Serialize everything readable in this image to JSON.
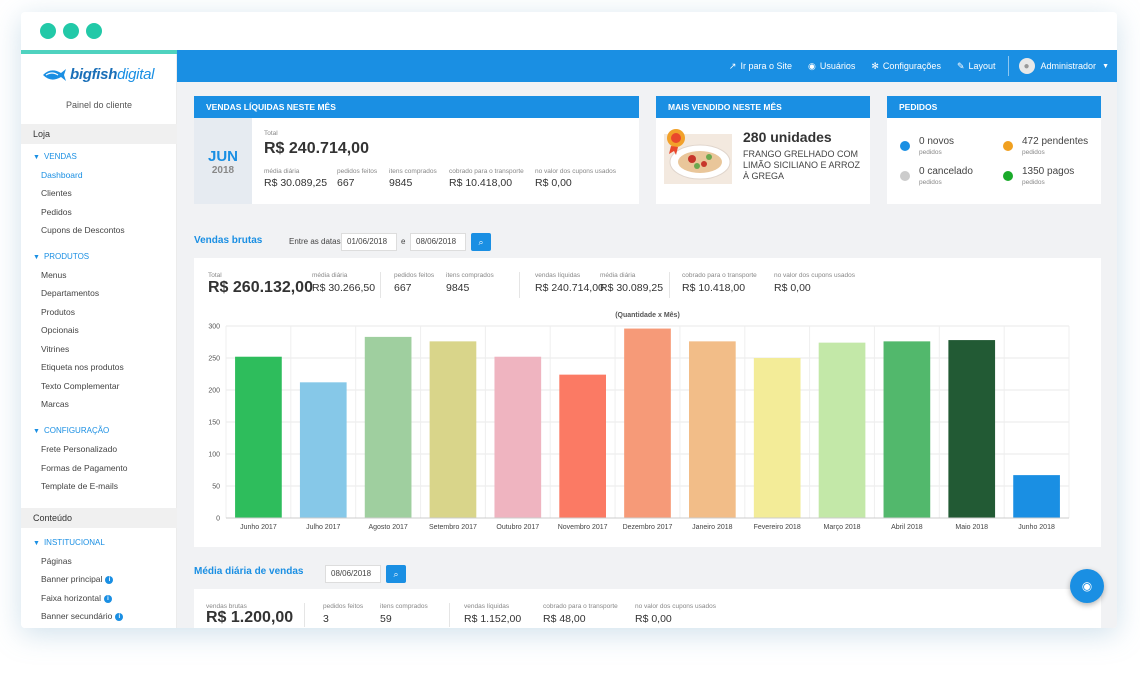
{
  "topbar": {
    "links": [
      {
        "label": "Ir para o Site",
        "icon": "external-link-icon"
      },
      {
        "label": "Usuários",
        "icon": "users-icon"
      },
      {
        "label": "Configurações",
        "icon": "gear-icon"
      },
      {
        "label": "Layout",
        "icon": "brush-icon"
      }
    ],
    "user": "Administrador"
  },
  "sidebar": {
    "brand_main": "bigfish",
    "brand_accent": "digital",
    "painel": "Painel do cliente",
    "loja": "Loja",
    "vendas": "VENDAS",
    "vendas_items": [
      "Dashboard",
      "Clientes",
      "Pedidos",
      "Cupons de Descontos"
    ],
    "produtos": "PRODUTOS",
    "produtos_items": [
      "Menus",
      "Departamentos",
      "Produtos",
      "Opcionais",
      "Vitrines",
      "Etiqueta nos produtos",
      "Texto Complementar",
      "Marcas"
    ],
    "configuracao": "CONFIGURAÇÃO",
    "config_items": [
      "Frete Personalizado",
      "Formas de Pagamento",
      "Template de E-mails"
    ],
    "conteudo": "Conteúdo",
    "institucional": "INSTITUCIONAL",
    "inst_items": [
      "Páginas",
      "Banner principal",
      "Faixa horizontal",
      "Banner secundário"
    ]
  },
  "vendas_mes": {
    "title": "VENDAS LÍQUIDAS NESTE MÊS",
    "month": "JUN",
    "year": "2018",
    "total_label": "Total",
    "total": "R$ 240.714,00",
    "media_label": "média diária",
    "media": "R$ 30.089,25",
    "pedidos_label": "pedidos feitos",
    "pedidos": "667",
    "itens_label": "itens comprados",
    "itens": "9845",
    "transporte_label": "cobrado para o transporte",
    "transporte": "R$ 10.418,00",
    "cupons_label": "no valor dos cupons usados",
    "cupons": "R$ 0,00"
  },
  "mais_vendido": {
    "title": "MAIS VENDIDO NESTE MÊS",
    "units": "280 unidades",
    "product": "FRANGO GRELHADO COM LIMÃO SICILIANO E ARROZ À GREGA"
  },
  "pedidos": {
    "title": "PEDIDOS",
    "items": [
      {
        "value": "0 novos",
        "sub": "pedidos",
        "color": "#1a8fe3"
      },
      {
        "value": "472 pendentes",
        "sub": "pedidos",
        "color": "#f0a020"
      },
      {
        "value": "0 cancelado",
        "sub": "pedidos",
        "color": "#cccccc"
      },
      {
        "value": "1350 pagos",
        "sub": "pedidos",
        "color": "#1aaa2a"
      }
    ]
  },
  "vendas_brutas": {
    "title": "Vendas brutas",
    "entre_label": "Entre as datas:",
    "date_from": "01/06/2018",
    "e_label": "e",
    "date_to": "08/06/2018",
    "total_label": "Total",
    "total": "R$ 260.132,00",
    "media_label": "média diária",
    "media": "R$ 30.266,50",
    "pedidos_label": "pedidos feitos",
    "pedidos": "667",
    "itens_label": "itens comprados",
    "itens": "9845",
    "liquidas_label": "vendas líquidas",
    "liquidas": "R$ 240.714,00",
    "media2_label": "média diária",
    "media2": "R$ 30.089,25",
    "transporte_label": "cobrado para o transporte",
    "transporte": "R$ 10.418,00",
    "cupons_label": "no valor dos cupons usados",
    "cupons": "R$ 0,00"
  },
  "chart_data": {
    "type": "bar",
    "title": "(Quantidade x Mês)",
    "categories": [
      "Junho 2017",
      "Julho 2017",
      "Agosto 2017",
      "Setembro 2017",
      "Outubro 2017",
      "Novembro 2017",
      "Dezembro 2017",
      "Janeiro 2018",
      "Fevereiro 2018",
      "Março 2018",
      "Abril 2018",
      "Maio 2018",
      "Junho 2018"
    ],
    "values": [
      252,
      212,
      283,
      276,
      252,
      224,
      296,
      276,
      250,
      274,
      276,
      278,
      67
    ],
    "colors": [
      "#2ebd5c",
      "#86c8e8",
      "#9fcf9f",
      "#d9d58a",
      "#efb4c0",
      "#fb7a64",
      "#f69a78",
      "#f2bd88",
      "#f3ec98",
      "#c3e8a8",
      "#52b86c",
      "#225a34",
      "#1a8fe3"
    ],
    "ylim": [
      0,
      300
    ],
    "yticks": [
      0,
      50,
      100,
      150,
      200,
      250,
      300
    ],
    "grid": true
  },
  "media_diaria": {
    "title": "Média diária de vendas",
    "date": "08/06/2018",
    "brutas_label": "vendas brutas",
    "brutas": "R$ 1.200,00",
    "pedidos_label": "pedidos feitos",
    "pedidos": "3",
    "itens_label": "itens comprados",
    "itens": "59",
    "liquidas_label": "vendas líquidas",
    "liquidas": "R$ 1.152,00",
    "transporte_label": "cobrado para o transporte",
    "transporte": "R$ 48,00",
    "cupons_label": "no valor dos cupons usados",
    "cupons": "R$ 0,00"
  }
}
